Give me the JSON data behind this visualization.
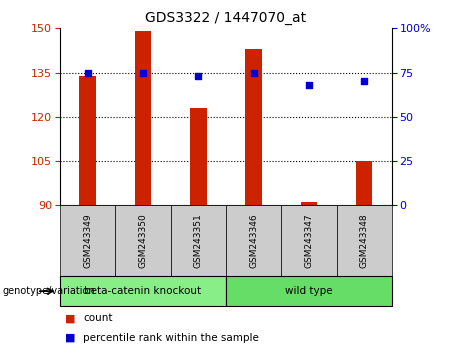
{
  "title": "GDS3322 / 1447070_at",
  "samples": [
    "GSM243349",
    "GSM243350",
    "GSM243351",
    "GSM243346",
    "GSM243347",
    "GSM243348"
  ],
  "counts": [
    134,
    149,
    123,
    143,
    91,
    105
  ],
  "percentiles": [
    75,
    75,
    73,
    75,
    68,
    70
  ],
  "ylim_left": [
    90,
    150
  ],
  "ylim_right": [
    0,
    100
  ],
  "yticks_left": [
    90,
    105,
    120,
    135,
    150
  ],
  "yticks_right": [
    0,
    25,
    50,
    75,
    100
  ],
  "ytick_labels_right": [
    "0",
    "25",
    "50",
    "75",
    "100%"
  ],
  "bar_color": "#cc2200",
  "dot_color": "#0000cc",
  "bar_width": 0.3,
  "groups": [
    {
      "label": "beta-catenin knockout",
      "indices": [
        0,
        1,
        2
      ],
      "color": "#88ee88"
    },
    {
      "label": "wild type",
      "indices": [
        3,
        4,
        5
      ],
      "color": "#66dd66"
    }
  ],
  "group_label": "genotype/variation",
  "legend_count_label": "count",
  "legend_pct_label": "percentile rank within the sample",
  "bg_color": "#ffffff",
  "tick_color_left": "#cc2200",
  "tick_color_right": "#0000cc",
  "sample_bg_color": "#cccccc",
  "fig_width": 4.61,
  "fig_height": 3.54,
  "dpi": 100
}
